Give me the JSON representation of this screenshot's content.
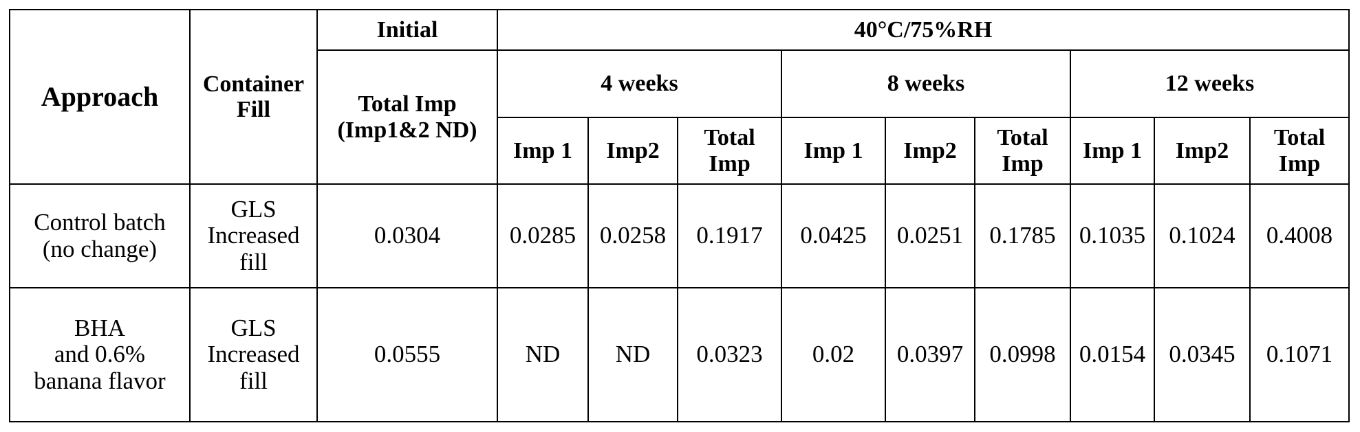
{
  "table": {
    "header": {
      "approach": "Approach",
      "container_fill": [
        "Container",
        "Fill"
      ],
      "initial": "Initial",
      "condition": "40°C/75%RH",
      "initial_metric": [
        "Total Imp",
        "(Imp1&2 ND)"
      ],
      "timepoints": [
        "4 weeks",
        "8 weeks",
        "12 weeks"
      ],
      "columns": [
        "Imp 1",
        "Imp2",
        [
          "Total",
          "Imp"
        ],
        "Imp 1",
        "Imp2",
        [
          "Total",
          "Imp"
        ],
        "Imp 1",
        "Imp2",
        [
          "Total",
          "Imp"
        ]
      ]
    },
    "rows": [
      [
        [
          "Control batch",
          "(no change)"
        ],
        [
          "GLS",
          "Increased",
          "fill"
        ],
        "0.0304",
        "0.0285",
        "0.0258",
        "0.1917",
        "0.0425",
        "0.0251",
        "0.1785",
        "0.1035",
        "0.1024",
        "0.4008"
      ],
      [
        [
          "BHA",
          "and 0.6%",
          "banana flavor"
        ],
        [
          "GLS",
          "Increased",
          "fill"
        ],
        "0.0555",
        "ND",
        "ND",
        "0.0323",
        "0.02",
        "0.0397",
        "0.0998",
        "0.0154",
        "0.0345",
        "0.1071"
      ]
    ]
  }
}
